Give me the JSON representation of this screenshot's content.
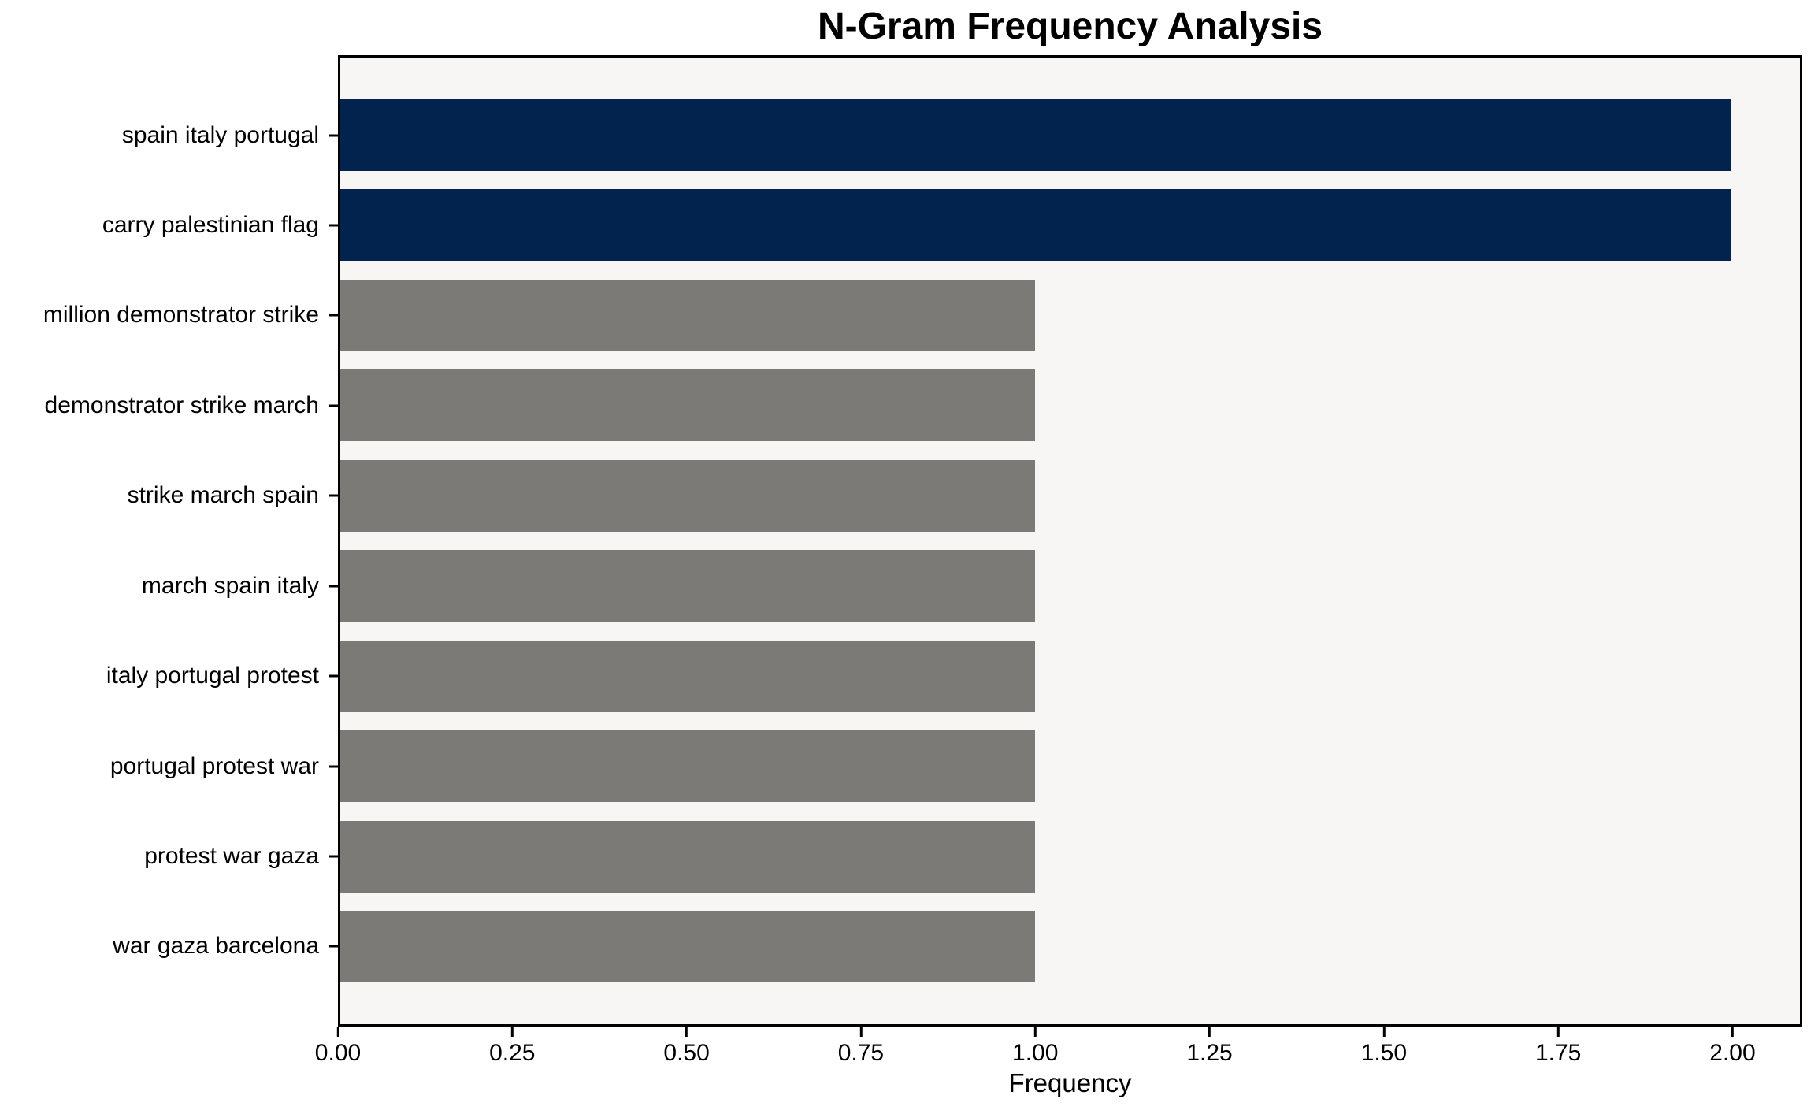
{
  "chart_data": {
    "type": "bar",
    "orientation": "horizontal",
    "title": "N-Gram Frequency Analysis",
    "xlabel": "Frequency",
    "ylabel": "",
    "categories": [
      "spain italy portugal",
      "carry palestinian flag",
      "million demonstrator strike",
      "demonstrator strike march",
      "strike march spain",
      "march spain italy",
      "italy portugal protest",
      "portugal protest war",
      "protest war gaza",
      "war gaza barcelona"
    ],
    "values": [
      2,
      2,
      1,
      1,
      1,
      1,
      1,
      1,
      1,
      1
    ],
    "bar_colors": [
      "#02234e",
      "#02234e",
      "#7b7a77",
      "#7b7a77",
      "#7b7a77",
      "#7b7a77",
      "#7b7a77",
      "#7b7a77",
      "#7b7a77",
      "#7b7a77"
    ],
    "xlim": [
      0,
      2.1
    ],
    "x_tick_values": [
      0,
      0.25,
      0.5,
      0.75,
      1.0,
      1.25,
      1.5,
      1.75,
      2.0
    ],
    "x_tick_labels": [
      "0.00",
      "0.25",
      "0.50",
      "0.75",
      "1.00",
      "1.25",
      "1.50",
      "1.75",
      "2.00"
    ],
    "grid": false,
    "legend": false,
    "colors": {
      "highlight": "#02234e",
      "default_bar": "#7b7a77",
      "plot_background": "#f7f6f5",
      "figure_background": "#ffffff",
      "axis": "#000000",
      "text": "#000000"
    }
  }
}
